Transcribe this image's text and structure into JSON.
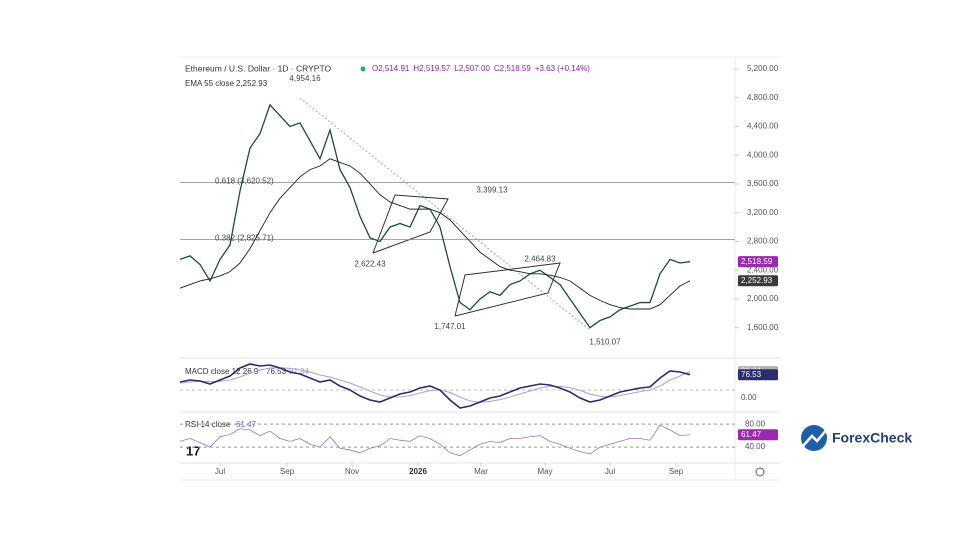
{
  "chart_data": {
    "type": "line",
    "title": "Ethereum / U.S. Dollar · 1D · CRYPTO",
    "ohlc": [
      "O2,514.91",
      "H2,519.57",
      "L2,507.00",
      "C2,518.59",
      "+3.63 (+0.14%)"
    ],
    "ylim": [
      1220,
      5325
    ],
    "yticks": [
      {
        "value": 5200,
        "label": "5,200.00"
      },
      {
        "value": 4800,
        "label": "4,800.00"
      },
      {
        "value": 4400,
        "label": "4,400.00"
      },
      {
        "value": 4000,
        "label": "4,000.00"
      },
      {
        "value": 3600,
        "label": "3,600.00"
      },
      {
        "value": 3200,
        "label": "3,200.00"
      },
      {
        "value": 2800,
        "label": "2,800.00"
      },
      {
        "value": 2400,
        "label": "2,400.00"
      },
      {
        "value": 2000,
        "label": "2,000.00"
      },
      {
        "value": 1600,
        "label": "1,600.00"
      }
    ],
    "xticks": [
      {
        "value": 4,
        "label": "Jul"
      },
      {
        "value": 10.7,
        "label": "Sep"
      },
      {
        "value": 17.2,
        "label": "Nov"
      },
      {
        "value": 23.8,
        "label": "2026"
      },
      {
        "value": 30.1,
        "label": "Mar"
      },
      {
        "value": 36.5,
        "label": "May"
      },
      {
        "value": 43,
        "label": "Jul"
      },
      {
        "value": 49.6,
        "label": "Sep"
      }
    ],
    "price": {
      "color": "#1f4d3a",
      "last_label": "2,518.59",
      "badge_color": "#9c27b0",
      "values": [
        2550,
        2600,
        2480,
        2250,
        2550,
        2750,
        3500,
        4100,
        4300,
        4700,
        4550,
        4400,
        4450,
        4200,
        3950,
        4350,
        3800,
        3550,
        3150,
        2850,
        2800,
        3000,
        3050,
        3000,
        3300,
        3250,
        3000,
        2450,
        1950,
        1850,
        2000,
        2100,
        2050,
        2200,
        2250,
        2350,
        2400,
        2300,
        2200,
        2000,
        1800,
        1600,
        1700,
        1750,
        1850,
        1900,
        1950,
        1950,
        2350,
        2550,
        2500,
        2518.59
      ]
    },
    "series": [
      {
        "name": "EMA 55 close",
        "color": "#222222",
        "last_label": "2,252.93",
        "badge_color": "#3a3a3a",
        "values": [
          2150,
          2200,
          2250,
          2280,
          2320,
          2380,
          2500,
          2700,
          2950,
          3200,
          3400,
          3550,
          3700,
          3800,
          3850,
          3950,
          3900,
          3850,
          3750,
          3600,
          3450,
          3350,
          3300,
          3250,
          3250,
          3250,
          3200,
          3100,
          2950,
          2800,
          2650,
          2550,
          2450,
          2400,
          2380,
          2350,
          2350,
          2330,
          2300,
          2250,
          2150,
          2050,
          1980,
          1920,
          1880,
          1860,
          1860,
          1860,
          1920,
          2050,
          2180,
          2252.93
        ]
      }
    ],
    "fib_levels": [
      {
        "value": 3620.52,
        "label": "0.618 (3,620.52)"
      },
      {
        "value": 2825.71,
        "label": "0.382 (2,825.71)"
      }
    ],
    "annotations": [
      {
        "value": 4954.16,
        "label": "4,954.16"
      },
      {
        "value": 2622.43,
        "label": "2,622.43"
      },
      {
        "value": 3399.13,
        "label": "3,399.13"
      },
      {
        "value": 2464.83,
        "label": "2,464.83"
      },
      {
        "value": 1747.01,
        "label": "1,747.01"
      },
      {
        "value": 1510.07,
        "label": "1,510.07"
      }
    ],
    "macd": {
      "title": "MACD close 12 26 9",
      "ylim": [
        -100,
        150
      ],
      "yticks": [
        {
          "value": 0,
          "label": "0.00"
        }
      ],
      "macd": {
        "color": "#2b2d6e",
        "last_label": "76.53",
        "values": [
          40,
          50,
          45,
          30,
          50,
          70,
          110,
          130,
          120,
          125,
          110,
          90,
          80,
          60,
          40,
          50,
          20,
          0,
          -30,
          -50,
          -60,
          -40,
          -20,
          -10,
          10,
          20,
          0,
          -50,
          -90,
          -80,
          -60,
          -40,
          -30,
          -10,
          10,
          20,
          30,
          25,
          10,
          -10,
          -40,
          -60,
          -50,
          -30,
          -10,
          0,
          10,
          15,
          60,
          95,
          90,
          76.53
        ]
      },
      "signal": {
        "color": "#b39ddb",
        "last_label": "91.84",
        "values": [
          35,
          40,
          44,
          42,
          43,
          50,
          65,
          85,
          100,
          110,
          112,
          108,
          100,
          90,
          75,
          65,
          50,
          35,
          15,
          -5,
          -25,
          -35,
          -35,
          -28,
          -15,
          -3,
          0,
          -12,
          -35,
          -55,
          -62,
          -57,
          -48,
          -35,
          -20,
          -5,
          10,
          18,
          18,
          12,
          -2,
          -20,
          -32,
          -35,
          -28,
          -18,
          -8,
          0,
          20,
          50,
          70,
          91.84
        ]
      }
    },
    "rsi": {
      "title": "RSI 14 close",
      "ylim": [
        0,
        96
      ],
      "color": "#9575cd",
      "last_label": "61.47",
      "yticks": [
        {
          "value": 80,
          "label": "80.00"
        },
        {
          "value": 40,
          "label": "40.00"
        }
      ],
      "values": [
        50,
        55,
        48,
        40,
        58,
        62,
        72,
        70,
        60,
        68,
        55,
        50,
        55,
        45,
        40,
        58,
        38,
        35,
        30,
        38,
        42,
        55,
        52,
        50,
        60,
        55,
        45,
        30,
        25,
        35,
        45,
        50,
        48,
        55,
        55,
        58,
        60,
        50,
        45,
        38,
        32,
        28,
        40,
        45,
        50,
        55,
        55,
        52,
        78,
        70,
        60,
        61.47
      ]
    },
    "logo": "ForexCheck"
  }
}
